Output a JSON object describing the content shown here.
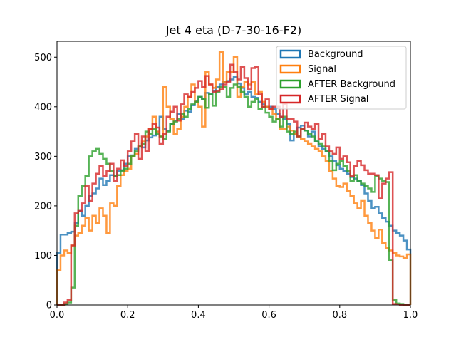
{
  "chart_data": {
    "type": "histogram-step",
    "title": "Jet 4 eta (D-7-30-16-F2)",
    "xlabel": "",
    "ylabel": "",
    "xlim": [
      0.0,
      1.0
    ],
    "ylim": [
      0,
      532
    ],
    "x_ticks": [
      0.0,
      0.2,
      0.4,
      0.6,
      0.8,
      1.0
    ],
    "x_tick_labels": [
      "0.0",
      "0.2",
      "0.4",
      "0.6",
      "0.8",
      "1.0"
    ],
    "y_ticks": [
      0,
      100,
      200,
      300,
      400,
      500
    ],
    "y_tick_labels": [
      "0",
      "100",
      "200",
      "300",
      "400",
      "500"
    ],
    "bins": 100,
    "bin_edges": [
      0.0,
      1.0
    ],
    "legend_position": "top-right",
    "series": [
      {
        "name": "Background",
        "color": "#1f77b4",
        "values": [
          105,
          142,
          142,
          145,
          148,
          165,
          190,
          180,
          200,
          220,
          225,
          235,
          255,
          242,
          250,
          262,
          260,
          270,
          272,
          285,
          300,
          302,
          315,
          320,
          318,
          332,
          338,
          342,
          350,
          380,
          355,
          352,
          365,
          372,
          385,
          375,
          392,
          390,
          403,
          412,
          420,
          416,
          428,
          425,
          432,
          440,
          445,
          450,
          452,
          455,
          460,
          447,
          438,
          425,
          430,
          420,
          418,
          410,
          405,
          400,
          400,
          395,
          385,
          380,
          375,
          365,
          332,
          345,
          358,
          362,
          352,
          340,
          350,
          330,
          320,
          315,
          310,
          300,
          290,
          282,
          275,
          270,
          265,
          258,
          255,
          250,
          242,
          225,
          210,
          195,
          198,
          185,
          175,
          168,
          160,
          150,
          145,
          140,
          130,
          112
        ]
      },
      {
        "name": "Signal",
        "color": "#ff7f0e",
        "values": [
          70,
          100,
          110,
          105,
          120,
          140,
          145,
          160,
          175,
          150,
          180,
          165,
          195,
          180,
          145,
          205,
          200,
          240,
          262,
          270,
          275,
          300,
          305,
          320,
          330,
          340,
          355,
          380,
          350,
          340,
          440,
          400,
          375,
          345,
          355,
          380,
          400,
          420,
          445,
          410,
          400,
          360,
          470,
          445,
          438,
          455,
          510,
          450,
          470,
          470,
          500,
          420,
          440,
          450,
          445,
          450,
          425,
          430,
          410,
          400,
          395,
          385,
          375,
          355,
          355,
          360,
          352,
          345,
          340,
          335,
          330,
          325,
          320,
          315,
          310,
          300,
          290,
          270,
          255,
          240,
          238,
          245,
          230,
          220,
          205,
          195,
          210,
          180,
          165,
          150,
          135,
          152,
          125,
          115,
          110,
          105,
          100,
          98,
          95,
          102
        ]
      },
      {
        "name": "AFTER Background",
        "color": "#2ca02c",
        "values": [
          0,
          0,
          2,
          5,
          35,
          160,
          220,
          240,
          260,
          300,
          310,
          315,
          305,
          295,
          285,
          270,
          260,
          262,
          270,
          275,
          285,
          300,
          310,
          320,
          325,
          350,
          345,
          355,
          345,
          340,
          335,
          350,
          365,
          370,
          375,
          385,
          380,
          395,
          405,
          410,
          420,
          415,
          398,
          425,
          402,
          430,
          440,
          440,
          420,
          438,
          445,
          440,
          430,
          420,
          400,
          410,
          415,
          395,
          400,
          388,
          380,
          370,
          375,
          360,
          380,
          350,
          345,
          350,
          340,
          355,
          352,
          345,
          340,
          330,
          325,
          320,
          310,
          290,
          272,
          285,
          290,
          280,
          270,
          250,
          262,
          250,
          245,
          240,
          235,
          228,
          260,
          255,
          250,
          248,
          90,
          10,
          3,
          2,
          0,
          0
        ]
      },
      {
        "name": "AFTER Signal",
        "color": "#d62728",
        "values": [
          0,
          0,
          5,
          10,
          120,
          185,
          190,
          205,
          240,
          210,
          245,
          265,
          280,
          260,
          270,
          285,
          250,
          275,
          292,
          280,
          310,
          330,
          345,
          295,
          340,
          310,
          355,
          365,
          358,
          325,
          345,
          380,
          390,
          400,
          372,
          405,
          425,
          420,
          430,
          438,
          452,
          440,
          462,
          445,
          430,
          432,
          435,
          445,
          450,
          485,
          470,
          455,
          480,
          458,
          435,
          478,
          480,
          425,
          400,
          415,
          395,
          400,
          400,
          380,
          405,
          375,
          375,
          370,
          340,
          355,
          368,
          360,
          355,
          365,
          335,
          345,
          320,
          310,
          305,
          318,
          295,
          300,
          288,
          260,
          280,
          290,
          282,
          272,
          265,
          265,
          262,
          215,
          245,
          255,
          268,
          2,
          1,
          0,
          0,
          0
        ]
      }
    ]
  }
}
